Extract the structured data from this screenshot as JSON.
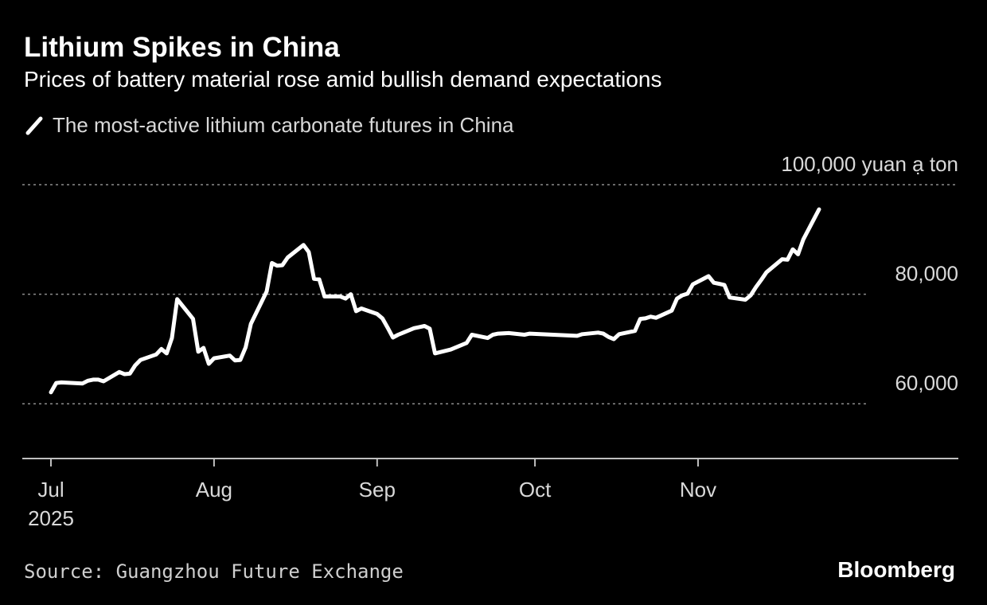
{
  "title": "Lithium Spikes in China",
  "subtitle": "Prices of battery material rose amid bullish demand expectations",
  "source": "Source: Guangzhou Future Exchange",
  "brand": "Bloomberg",
  "colors": {
    "background": "#000000",
    "line": "#ffffff",
    "grid": "#8c8c8c",
    "axis_text": "#d9d9d9"
  },
  "chart_data": {
    "type": "line",
    "title": "Lithium Spikes in China",
    "subtitle": "Prices of battery material rose amid bullish demand expectations",
    "unit_label": "100,000 yuan ạ ton",
    "ylim": [
      50000,
      100000
    ],
    "y_ticks": [
      {
        "value": 100000,
        "label": "100,000 yuan ạ ton"
      },
      {
        "value": 80000,
        "label": "80,000"
      },
      {
        "value": 60000,
        "label": "60,000"
      }
    ],
    "xlim": [
      "2025-06-30",
      "2025-12-31"
    ],
    "x_ticks": [
      {
        "date": "2025-07-01",
        "label": "Jul",
        "sublabel": "2025"
      },
      {
        "date": "2025-08-01",
        "label": "Aug",
        "sublabel": ""
      },
      {
        "date": "2025-09-01",
        "label": "Sep",
        "sublabel": ""
      },
      {
        "date": "2025-10-01",
        "label": "Oct",
        "sublabel": ""
      },
      {
        "date": "2025-11-01",
        "label": "Nov",
        "sublabel": ""
      }
    ],
    "grid": true,
    "legend_position": "top-left",
    "series": [
      {
        "name": "The most-active lithium carbonate futures in China",
        "points": [
          [
            "2025-07-01",
            62100
          ],
          [
            "2025-07-02",
            63800
          ],
          [
            "2025-07-03",
            63900
          ],
          [
            "2025-07-07",
            63700
          ],
          [
            "2025-07-08",
            64200
          ],
          [
            "2025-07-09",
            64400
          ],
          [
            "2025-07-10",
            64400
          ],
          [
            "2025-07-11",
            64100
          ],
          [
            "2025-07-14",
            65800
          ],
          [
            "2025-07-15",
            65400
          ],
          [
            "2025-07-16",
            65500
          ],
          [
            "2025-07-17",
            67000
          ],
          [
            "2025-07-18",
            68000
          ],
          [
            "2025-07-21",
            69000
          ],
          [
            "2025-07-22",
            70000
          ],
          [
            "2025-07-23",
            69200
          ],
          [
            "2025-07-24",
            72000
          ],
          [
            "2025-07-25",
            79100
          ],
          [
            "2025-07-28",
            75500
          ],
          [
            "2025-07-29",
            69500
          ],
          [
            "2025-07-30",
            70200
          ],
          [
            "2025-07-31",
            67300
          ],
          [
            "2025-08-01",
            68300
          ],
          [
            "2025-08-04",
            68800
          ],
          [
            "2025-08-05",
            67900
          ],
          [
            "2025-08-06",
            68000
          ],
          [
            "2025-08-07",
            70300
          ],
          [
            "2025-08-08",
            74600
          ],
          [
            "2025-08-11",
            80500
          ],
          [
            "2025-08-12",
            85700
          ],
          [
            "2025-08-13",
            85200
          ],
          [
            "2025-08-14",
            85300
          ],
          [
            "2025-08-15",
            86700
          ],
          [
            "2025-08-18",
            89000
          ],
          [
            "2025-08-19",
            87700
          ],
          [
            "2025-08-20",
            82800
          ],
          [
            "2025-08-21",
            82700
          ],
          [
            "2025-08-22",
            79600
          ],
          [
            "2025-08-25",
            79600
          ],
          [
            "2025-08-26",
            79200
          ],
          [
            "2025-08-27",
            80000
          ],
          [
            "2025-08-28",
            76900
          ],
          [
            "2025-08-29",
            77400
          ],
          [
            "2025-09-01",
            76400
          ],
          [
            "2025-09-02",
            75600
          ],
          [
            "2025-09-03",
            73900
          ],
          [
            "2025-09-04",
            72100
          ],
          [
            "2025-09-05",
            72600
          ],
          [
            "2025-09-08",
            73800
          ],
          [
            "2025-09-09",
            74000
          ],
          [
            "2025-09-10",
            74200
          ],
          [
            "2025-09-11",
            73700
          ],
          [
            "2025-09-12",
            69200
          ],
          [
            "2025-09-15",
            69900
          ],
          [
            "2025-09-18",
            71100
          ],
          [
            "2025-09-19",
            72600
          ],
          [
            "2025-09-22",
            72000
          ],
          [
            "2025-09-23",
            72600
          ],
          [
            "2025-09-24",
            72800
          ],
          [
            "2025-09-26",
            72900
          ],
          [
            "2025-09-29",
            72600
          ],
          [
            "2025-09-30",
            72800
          ],
          [
            "2025-10-09",
            72400
          ],
          [
            "2025-10-10",
            72700
          ],
          [
            "2025-10-13",
            73000
          ],
          [
            "2025-10-14",
            72800
          ],
          [
            "2025-10-15",
            72200
          ],
          [
            "2025-10-16",
            71800
          ],
          [
            "2025-10-17",
            72700
          ],
          [
            "2025-10-20",
            73300
          ],
          [
            "2025-10-21",
            75500
          ],
          [
            "2025-10-22",
            75600
          ],
          [
            "2025-10-23",
            75900
          ],
          [
            "2025-10-24",
            75700
          ],
          [
            "2025-10-27",
            77000
          ],
          [
            "2025-10-28",
            79200
          ],
          [
            "2025-10-29",
            79800
          ],
          [
            "2025-10-30",
            80100
          ],
          [
            "2025-10-31",
            81800
          ],
          [
            "2025-11-03",
            83300
          ],
          [
            "2025-11-04",
            82100
          ],
          [
            "2025-11-05",
            81900
          ],
          [
            "2025-11-06",
            81700
          ],
          [
            "2025-11-07",
            79400
          ],
          [
            "2025-11-10",
            79000
          ],
          [
            "2025-11-11",
            79800
          ],
          [
            "2025-11-12",
            81300
          ],
          [
            "2025-11-13",
            82600
          ],
          [
            "2025-11-14",
            84000
          ],
          [
            "2025-11-17",
            86400
          ],
          [
            "2025-11-18",
            86300
          ],
          [
            "2025-11-19",
            88200
          ],
          [
            "2025-11-20",
            87300
          ],
          [
            "2025-11-21",
            90000
          ],
          [
            "2025-11-24",
            95500
          ]
        ]
      }
    ]
  }
}
